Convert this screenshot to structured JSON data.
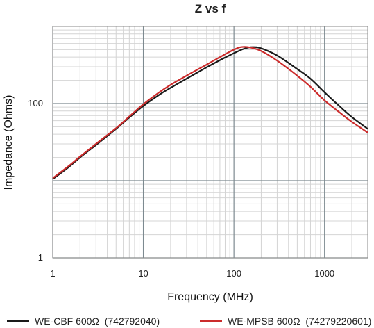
{
  "chart_data": {
    "type": "line",
    "title": "Z vs f",
    "xlabel": "Frequency (MHz)",
    "ylabel": "Impedance (Ohms)",
    "x_scale": "log",
    "y_scale": "log",
    "xlim": [
      1,
      3000
    ],
    "ylim": [
      1,
      1000
    ],
    "x_ticks": [
      1,
      10,
      100,
      1000
    ],
    "x_tick_labels": [
      "1",
      "10",
      "100",
      "1000"
    ],
    "y_ticks": [
      1,
      100
    ],
    "y_tick_labels": [
      "1",
      "100"
    ],
    "grid": true,
    "legend_position": "bottom",
    "series": [
      {
        "name": "WE-CBF 600Ω  (742792040)",
        "color": "#1a1a1a",
        "x": [
          1,
          1.5,
          2,
          3,
          5,
          7,
          10,
          15,
          20,
          30,
          50,
          70,
          100,
          130,
          160,
          200,
          300,
          500,
          700,
          1000,
          1500,
          2000,
          3000
        ],
        "y": [
          10.5,
          15,
          20,
          29,
          47,
          66,
          93,
          130,
          160,
          210,
          295,
          365,
          450,
          515,
          540,
          520,
          420,
          280,
          210,
          140,
          90,
          67,
          47
        ]
      },
      {
        "name": "WE-MPSB 600Ω  (74279220601)",
        "color": "#cc2b2b",
        "x": [
          1,
          1.5,
          2,
          3,
          5,
          7,
          10,
          15,
          20,
          30,
          50,
          70,
          100,
          120,
          150,
          200,
          300,
          500,
          700,
          1000,
          1500,
          2000,
          3000
        ],
        "y": [
          10.8,
          15.5,
          20.5,
          30,
          48,
          68,
          98,
          140,
          175,
          230,
          320,
          400,
          500,
          540,
          535,
          480,
          360,
          230,
          165,
          110,
          75,
          58,
          42
        ]
      }
    ]
  }
}
